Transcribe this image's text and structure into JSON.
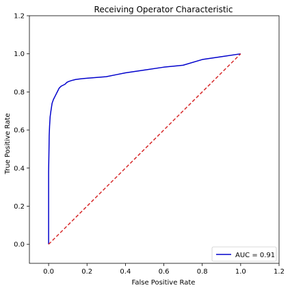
{
  "chart_data": {
    "type": "line",
    "title": "Receiving Operator Characteristic",
    "xlabel": "False Positive Rate",
    "ylabel": "True Positive Rate",
    "xlim": [
      -0.1,
      1.2
    ],
    "ylim": [
      -0.1,
      1.2
    ],
    "xticks": [
      "0.0",
      "0.2",
      "0.4",
      "0.6",
      "0.8",
      "1.0",
      "1.2"
    ],
    "yticks": [
      "0.0",
      "0.2",
      "0.4",
      "0.6",
      "0.8",
      "1.0",
      "1.2"
    ],
    "grid": false,
    "legend": {
      "position": "lower-right",
      "entries": [
        "AUC = 0.91"
      ]
    },
    "series": [
      {
        "name": "AUC = 0.91",
        "color": "#0000cc",
        "style": "solid",
        "x": [
          0.0,
          0.0,
          0.002,
          0.003,
          0.005,
          0.008,
          0.012,
          0.018,
          0.025,
          0.035,
          0.045,
          0.055,
          0.065,
          0.075,
          0.085,
          0.095,
          0.105,
          0.12,
          0.14,
          0.16,
          0.18,
          0.2,
          0.25,
          0.3,
          0.35,
          0.4,
          0.5,
          0.6,
          0.7,
          0.8,
          0.9,
          1.0
        ],
        "y": [
          0.0,
          0.38,
          0.5,
          0.57,
          0.62,
          0.67,
          0.7,
          0.74,
          0.76,
          0.78,
          0.8,
          0.82,
          0.83,
          0.835,
          0.84,
          0.85,
          0.855,
          0.86,
          0.865,
          0.868,
          0.87,
          0.872,
          0.876,
          0.88,
          0.89,
          0.9,
          0.915,
          0.93,
          0.94,
          0.97,
          0.985,
          1.0
        ]
      },
      {
        "name": "",
        "color": "#d62728",
        "style": "dashed",
        "x": [
          0.0,
          1.0
        ],
        "y": [
          0.0,
          1.0
        ]
      }
    ]
  }
}
